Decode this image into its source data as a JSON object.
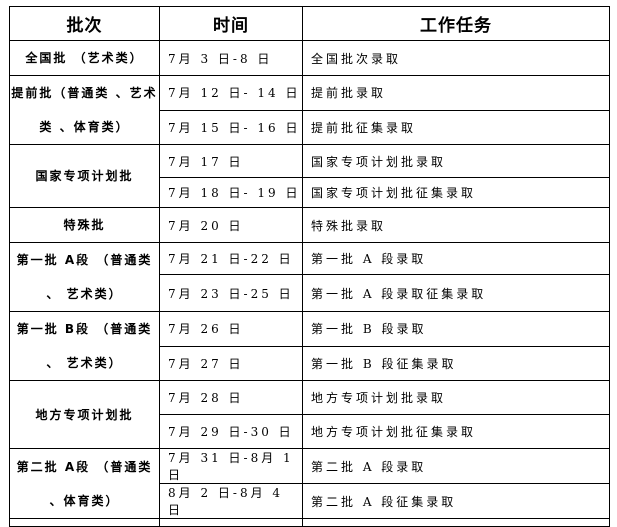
{
  "headers": [
    "批次",
    "时间",
    "工作任务"
  ],
  "groups": [
    {
      "batch": "全国批 （艺术类）",
      "rows": [
        [
          "7月 3 日-8 日",
          "全国批次录取"
        ]
      ]
    },
    {
      "batch": "提前批（普通类 、艺术类 、体育类）",
      "rows": [
        [
          "7月 12 日- 14 日",
          "提前批录取"
        ],
        [
          "7月 15 日- 16 日",
          "提前批征集录取"
        ]
      ]
    },
    {
      "batch": "国家专项计划批",
      "rows": [
        [
          "7月 17 日",
          "国家专项计划批录取"
        ],
        [
          "7月 18 日- 19 日",
          "国家专项计划批征集录取"
        ]
      ]
    },
    {
      "batch": "特殊批",
      "rows": [
        [
          "7月 20 日",
          "特殊批录取"
        ]
      ]
    },
    {
      "batch": "第一批 A段 （普通类 、 艺术类）",
      "rows": [
        [
          "7月 21 日-22 日",
          "第一批 A 段录取"
        ],
        [
          "7月 23 日-25 日",
          "第一批 A 段录取征集录取"
        ]
      ]
    },
    {
      "batch": "第一批 B段 （普通类 、 艺术类）",
      "rows": [
        [
          "7月 26 日",
          "第一批 B 段录取"
        ],
        [
          "7月 27 日",
          "第一批 B 段征集录取"
        ]
      ]
    },
    {
      "batch": "地方专项计划批",
      "rows": [
        [
          "7月 28 日",
          "地方专项计划批录取"
        ],
        [
          "7月 29 日-30 日",
          "地方专项计划批征集录取"
        ]
      ]
    },
    {
      "batch": "第二批 A段 （普通类 、体育类）",
      "rows": [
        [
          "7月 31 日-8月 1 日",
          "第二批 A 段录取"
        ],
        [
          "8月 2 日-8月 4 日",
          "第二批 A 段征集录取"
        ]
      ]
    }
  ]
}
